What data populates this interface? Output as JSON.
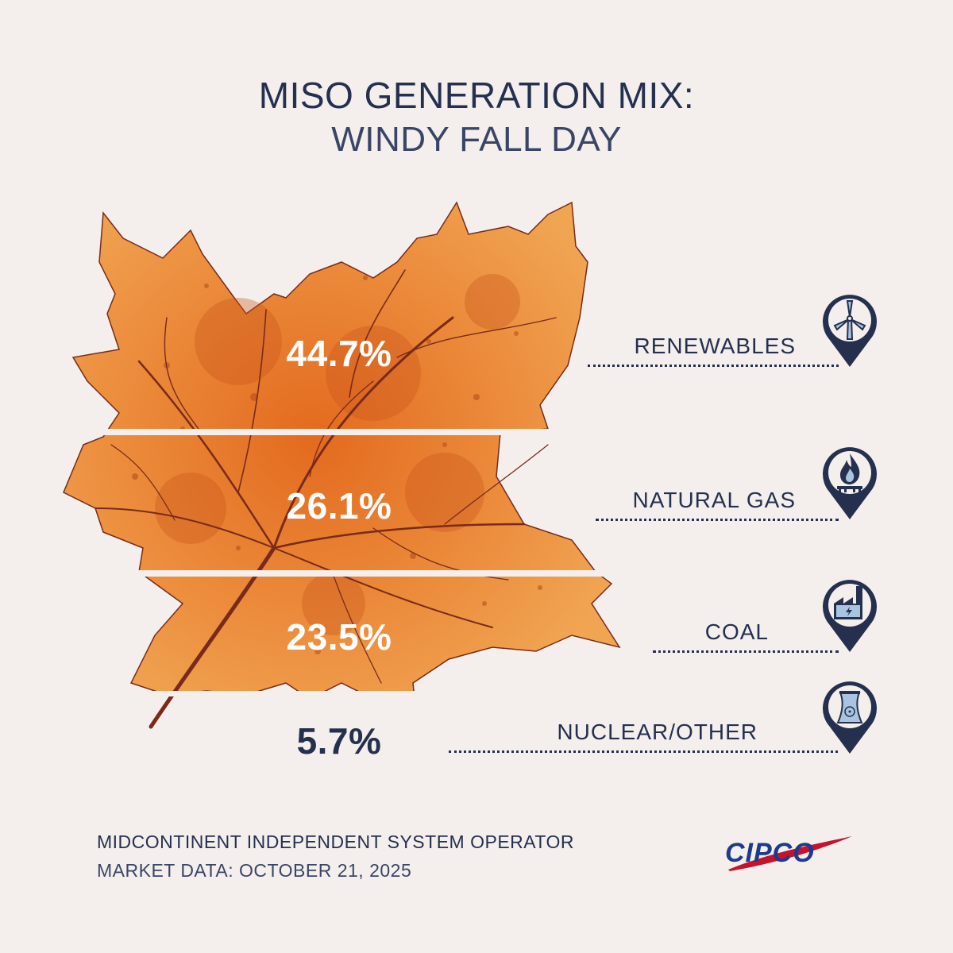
{
  "title": {
    "line1": "MISO GENERATION MIX:",
    "line2": "WINDY FALL DAY"
  },
  "chart_data": {
    "type": "bar",
    "categories": [
      "RENEWABLES",
      "NATURAL GAS",
      "COAL",
      "NUCLEAR/OTHER"
    ],
    "values": [
      44.7,
      26.1,
      23.5,
      5.7
    ],
    "value_labels": [
      "44.7%",
      "26.1%",
      "23.5%",
      "5.7%"
    ],
    "unit": "%",
    "icons": [
      "wind-turbine-icon",
      "gas-flame-icon",
      "factory-icon",
      "nuclear-cooling-tower-icon"
    ]
  },
  "footer": {
    "line1": "MIDCONTINENT INDEPENDENT SYSTEM OPERATOR",
    "line2": "MARKET DATA: OCTOBER 21, 2025"
  },
  "logo": {
    "text": "CIPCO"
  },
  "colors": {
    "navy": "#25304f",
    "background": "#f4efec",
    "leaf_orange": "#e8802f",
    "leaf_dark": "#d9651f",
    "vein": "#7a2a1a",
    "icon_fill": "#a8c4e0",
    "logo_red": "#c4122f",
    "logo_blue": "#1d3b8c"
  }
}
